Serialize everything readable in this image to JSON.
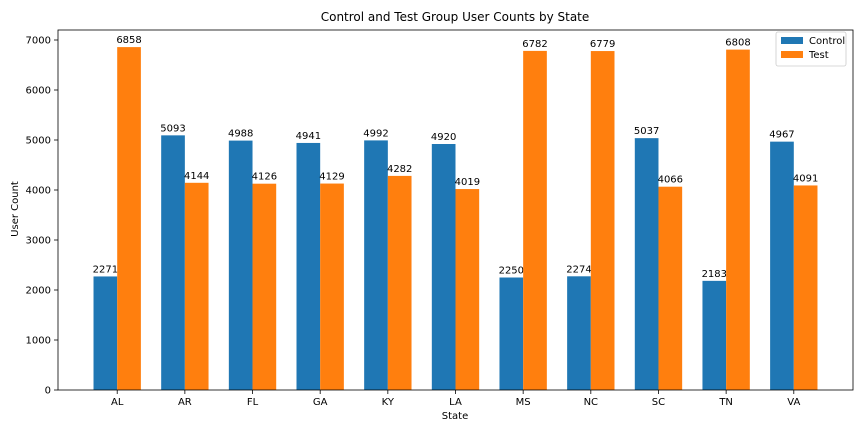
{
  "chart_data": {
    "type": "bar",
    "title": "Control and Test Group User Counts by State",
    "xlabel": "State",
    "ylabel": "User Count",
    "ylim": [
      0,
      7200
    ],
    "yticks": [
      0,
      1000,
      2000,
      3000,
      4000,
      5000,
      6000,
      7000
    ],
    "categories": [
      "AL",
      "AR",
      "FL",
      "GA",
      "KY",
      "LA",
      "MS",
      "NC",
      "SC",
      "TN",
      "VA"
    ],
    "series": [
      {
        "name": "Control",
        "color": "#1f77b4",
        "values": [
          2271,
          5093,
          4988,
          4941,
          4992,
          4920,
          2250,
          2274,
          5037,
          2183,
          4967
        ]
      },
      {
        "name": "Test",
        "color": "#ff7f0e",
        "values": [
          6858,
          4144,
          4126,
          4129,
          4282,
          4019,
          6782,
          6779,
          4066,
          6808,
          4091
        ]
      }
    ],
    "legend_position": "top-right",
    "grid": false
  }
}
